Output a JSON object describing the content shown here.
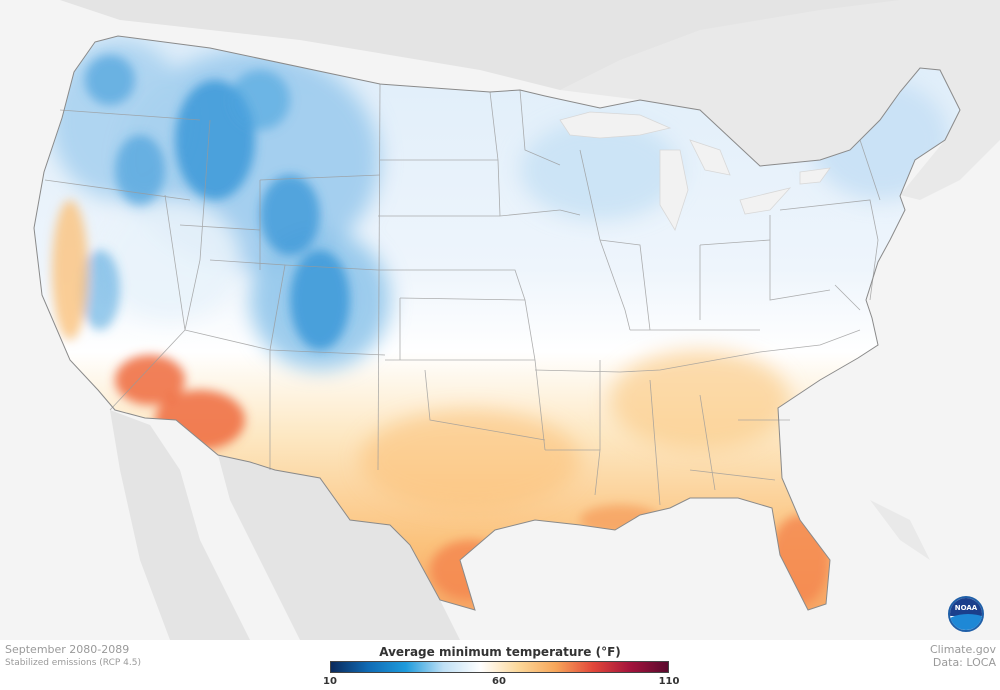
{
  "map": {
    "period": "September 2080-2089",
    "scenario": "Stabilized emissions (RCP 4.5)",
    "credit_site": "Climate.gov",
    "credit_data": "Data: LOCA",
    "legend_title": "Average minimum temperature (°F)",
    "legend_ticks": [
      "10",
      "60",
      "110"
    ],
    "legend_min": 10,
    "legend_max": 110,
    "color_stops": [
      "#0b2a5c",
      "#0f6bb5",
      "#1e9bdc",
      "#bfe0f5",
      "#ffffff",
      "#fcd89a",
      "#f7a65a",
      "#e2473a",
      "#a3133c",
      "#5a0a2e"
    ],
    "logo_text": "NOAA",
    "logo_icon": "noaa-logo-icon"
  }
}
